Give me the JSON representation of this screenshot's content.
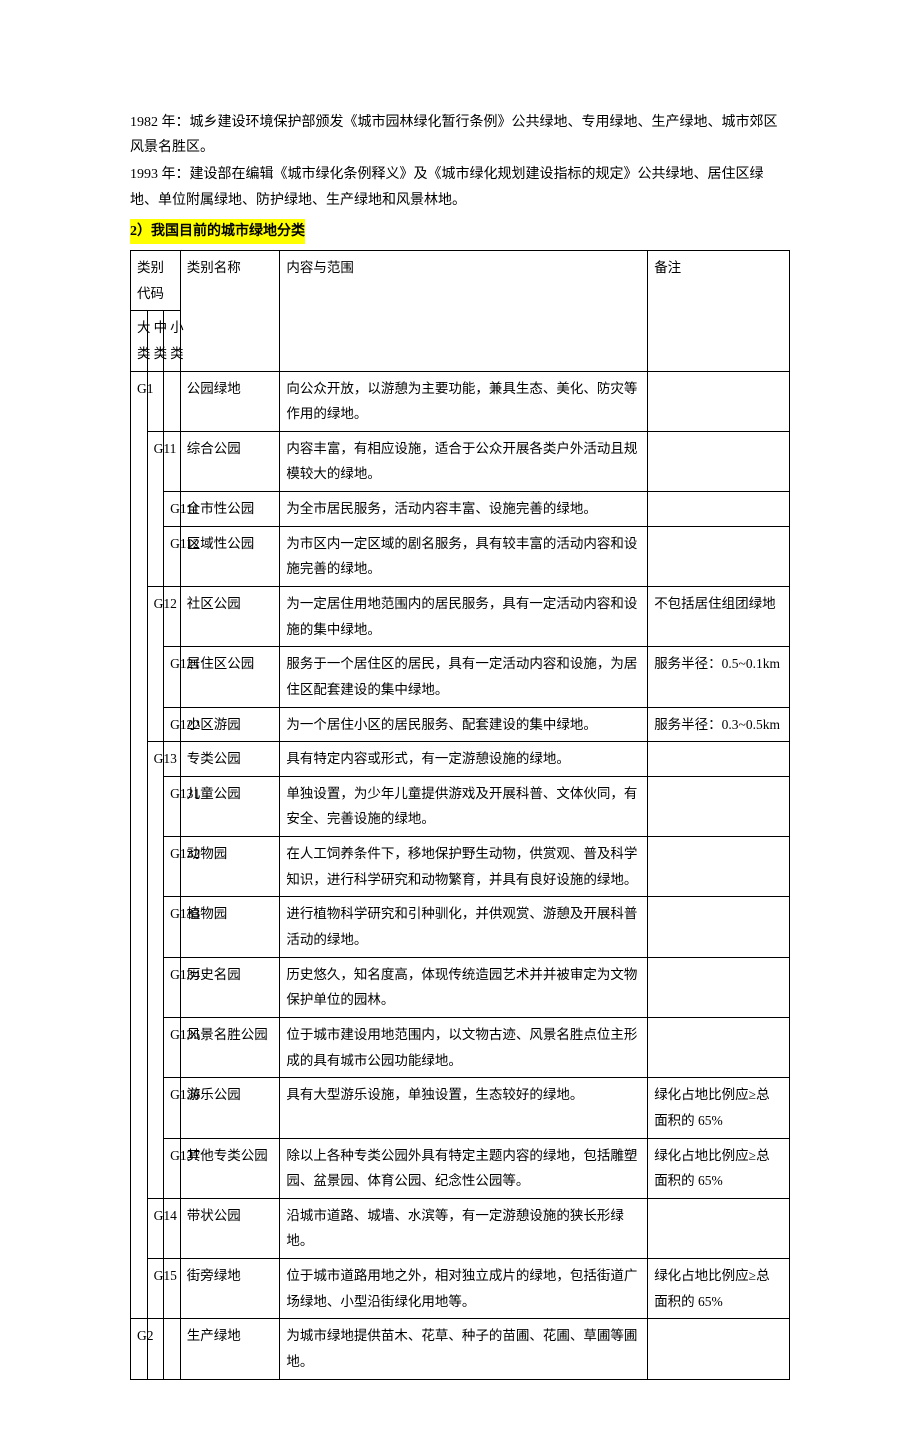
{
  "intro": {
    "p1": "1982 年：城乡建设环境保护部颁发《城市园林绿化暂行条例》公共绿地、专用绿地、生产绿地、城市郊区风景名胜区。",
    "p2": "1993 年：建设部在编辑《城市绿化条例释义》及《城市绿化规划建设指标的规定》公共绿地、居住区绿地、单位附属绿地、防护绿地、生产绿地和风景林地。",
    "heading": "2）我国目前的城市绿地分类"
  },
  "headers": {
    "code": "类别代码",
    "dl": "大类",
    "zl": "中类",
    "xl": "小类",
    "name": "类别名称",
    "content": "内容与范围",
    "note": "备注"
  },
  "rows": [
    {
      "dl": "G1",
      "zl": "",
      "xl": "",
      "name": "公园绿地",
      "content": "向公众开放，以游憩为主要功能，兼具生态、美化、防灾等作用的绿地。",
      "note": ""
    },
    {
      "dl": "",
      "zl": "G11",
      "xl": "",
      "name": "综合公园",
      "content": "内容丰富，有相应设施，适合于公众开展各类户外活动且规模较大的绿地。",
      "note": ""
    },
    {
      "dl": "",
      "zl": "",
      "xl": "G111",
      "name": "全市性公园",
      "content": "为全市居民服务，活动内容丰富、设施完善的绿地。",
      "note": ""
    },
    {
      "dl": "",
      "zl": "",
      "xl": "G112",
      "name": "区域性公园",
      "content": "为市区内一定区域的剧名服务，具有较丰富的活动内容和设施完善的绿地。",
      "note": ""
    },
    {
      "dl": "",
      "zl": "G12",
      "xl": "",
      "name": "社区公园",
      "content": "为一定居住用地范围内的居民服务，具有一定活动内容和设施的集中绿地。",
      "note": "不包括居住组团绿地"
    },
    {
      "dl": "",
      "zl": "",
      "xl": "G121",
      "name": "居住区公园",
      "content": "服务于一个居住区的居民，具有一定活动内容和设施，为居住区配套建设的集中绿地。",
      "note": "服务半径：0.5~0.1km"
    },
    {
      "dl": "",
      "zl": "",
      "xl": "G122",
      "name": "小区游园",
      "content": "为一个居住小区的居民服务、配套建设的集中绿地。",
      "note": "服务半径：0.3~0.5km"
    },
    {
      "dl": "",
      "zl": "G13",
      "xl": "",
      "name": "专类公园",
      "content": "具有特定内容或形式，有一定游憩设施的绿地。",
      "note": ""
    },
    {
      "dl": "",
      "zl": "",
      "xl": "G131",
      "name": "儿童公园",
      "content": "单独设置，为少年儿童提供游戏及开展科普、文体伙同，有安全、完善设施的绿地。",
      "note": ""
    },
    {
      "dl": "",
      "zl": "",
      "xl": "G132",
      "name": "动物园",
      "content": "在人工饲养条件下，移地保护野生动物，供赏观、普及科学知识，进行科学研究和动物繁育，并具有良好设施的绿地。",
      "note": ""
    },
    {
      "dl": "",
      "zl": "",
      "xl": "G133",
      "name": "植物园",
      "content": "进行植物科学研究和引种驯化，并供观赏、游憩及开展科普活动的绿地。",
      "note": ""
    },
    {
      "dl": "",
      "zl": "",
      "xl": "G134",
      "name": "历史名园",
      "content": "历史悠久，知名度高，体现传统造园艺术并并被审定为文物保护单位的园林。",
      "note": ""
    },
    {
      "dl": "",
      "zl": "",
      "xl": "G135",
      "name": "风景名胜公园",
      "content": "位于城市建设用地范围内，以文物古迹、风景名胜点位主形成的具有城市公园功能绿地。",
      "note": ""
    },
    {
      "dl": "",
      "zl": "",
      "xl": "G136",
      "name": "游乐公园",
      "content": "具有大型游乐设施，单独设置，生态较好的绿地。",
      "note": "绿化占地比例应≥总面积的 65%"
    },
    {
      "dl": "",
      "zl": "",
      "xl": "G137",
      "name": "其他专类公园",
      "content": "除以上各种专类公园外具有特定主题内容的绿地，包括雕塑园、盆景园、体育公园、纪念性公园等。",
      "note": "绿化占地比例应≥总面积的 65%"
    },
    {
      "dl": "",
      "zl": "G14",
      "xl": "",
      "name": "带状公园",
      "content": "沿城市道路、城墙、水滨等，有一定游憩设施的狭长形绿地。",
      "note": ""
    },
    {
      "dl": "",
      "zl": "G15",
      "xl": "",
      "name": "街旁绿地",
      "content": "位于城市道路用地之外，相对独立成片的绿地，包括街道广场绿地、小型沿街绿化用地等。",
      "note": "绿化占地比例应≥总面积的 65%"
    },
    {
      "dl": "G2",
      "zl": "",
      "xl": "",
      "name": "生产绿地",
      "content": "为城市绿地提供苗木、花草、种子的苗圃、花圃、草圃等圃地。",
      "note": ""
    }
  ]
}
